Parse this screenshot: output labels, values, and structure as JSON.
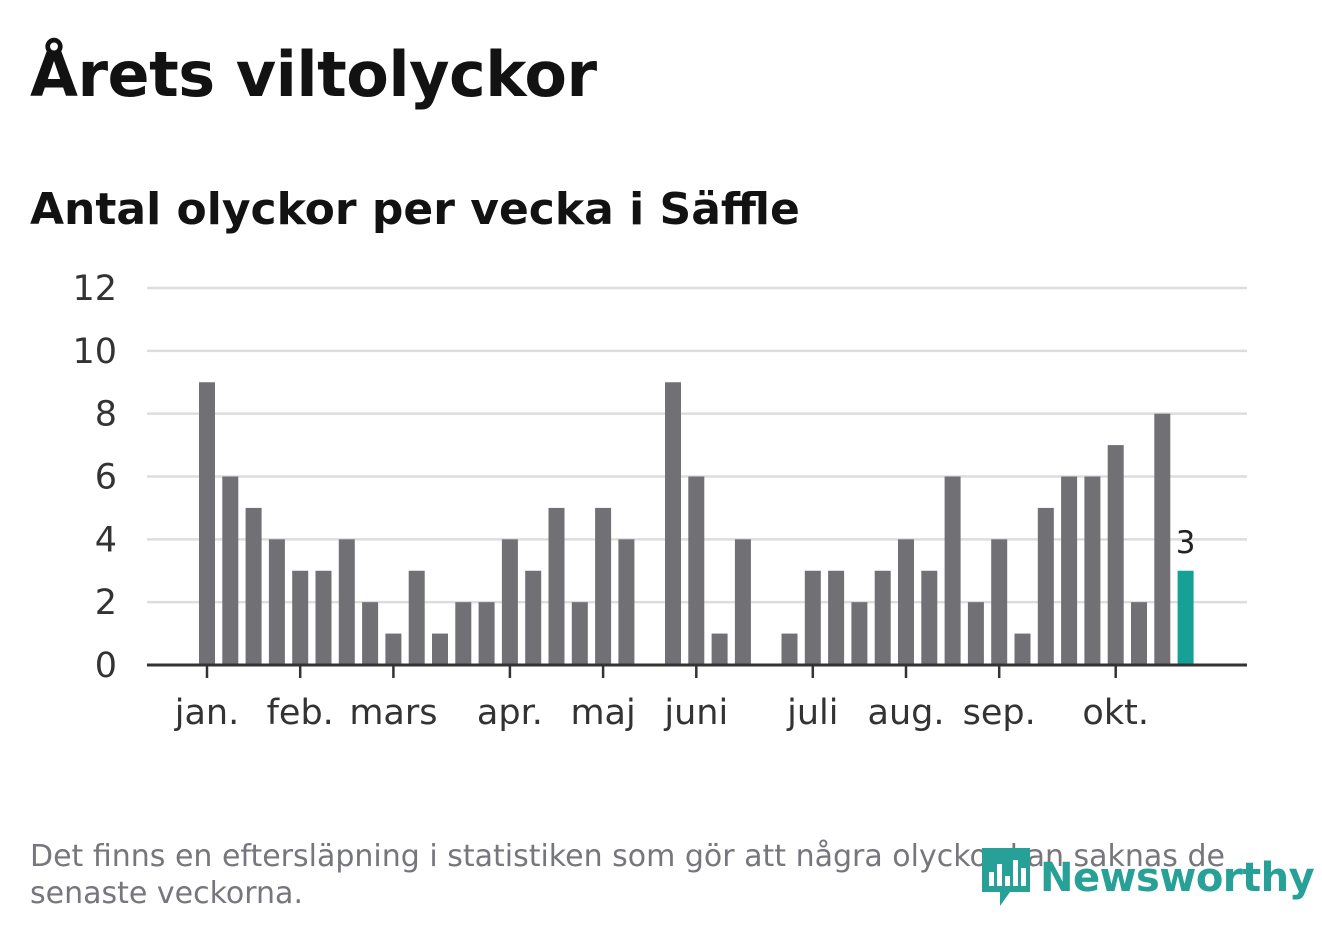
{
  "title": "Årets viltolyckor",
  "subtitle": "Antal olyckor per vecka i Säffle",
  "footnote": "Det finns en eftersläpning i statistiken som gör att några olyckor kan saknas de senaste veckorna.",
  "logo": {
    "text": "Newsworthy",
    "icon": "newsworthy-bar-chart-icon"
  },
  "colors": {
    "bar": "#707075",
    "highlight": "#17a096",
    "grid": "#dddddd",
    "axis": "#333333"
  },
  "chart_data": {
    "type": "bar",
    "title": "Antal olyckor per vecka i Säffle",
    "xlabel": "",
    "ylabel": "",
    "ylim": [
      0,
      12
    ],
    "yticks": [
      0,
      2,
      4,
      6,
      8,
      10,
      12
    ],
    "weeks": [
      1,
      2,
      3,
      4,
      5,
      6,
      7,
      8,
      9,
      10,
      11,
      12,
      13,
      14,
      15,
      16,
      17,
      18,
      19,
      20,
      21,
      22,
      23,
      24,
      25,
      26,
      27,
      28,
      29,
      30,
      31,
      32,
      33,
      34,
      35,
      36,
      37,
      38,
      39,
      40,
      41,
      42,
      43
    ],
    "values": [
      9,
      6,
      5,
      4,
      3,
      3,
      4,
      2,
      1,
      3,
      1,
      2,
      2,
      4,
      3,
      5,
      2,
      5,
      4,
      0,
      9,
      6,
      1,
      4,
      0,
      1,
      3,
      3,
      2,
      3,
      4,
      3,
      6,
      2,
      4,
      1,
      5,
      6,
      6,
      7,
      2,
      8,
      3
    ],
    "highlight_last": true,
    "last_value_label": "3",
    "months": [
      {
        "label": "jan.",
        "week": 1
      },
      {
        "label": "feb.",
        "week": 5
      },
      {
        "label": "mars",
        "week": 9
      },
      {
        "label": "apr.",
        "week": 14
      },
      {
        "label": "maj",
        "week": 18
      },
      {
        "label": "juni",
        "week": 22
      },
      {
        "label": "juli",
        "week": 27
      },
      {
        "label": "aug.",
        "week": 31
      },
      {
        "label": "sep.",
        "week": 35
      },
      {
        "label": "okt.",
        "week": 40
      }
    ]
  }
}
